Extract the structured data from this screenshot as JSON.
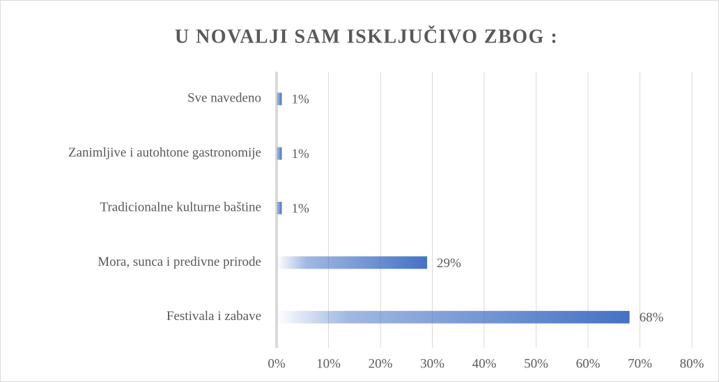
{
  "chart_data": {
    "type": "bar",
    "orientation": "horizontal",
    "title": "U NOVALJI SAM ISKLJUČIVO ZBOG :",
    "categories": [
      "Festivala i zabave",
      "Mora, sunca i predivne prirode",
      "Tradicionalne kulturne baštine",
      "Zanimljive i autohtone gastronomije",
      "Sve navedeno"
    ],
    "values": [
      68,
      29,
      1,
      1,
      1
    ],
    "value_labels": [
      "68%",
      "29%",
      "1%",
      "1%",
      "1%"
    ],
    "color": "#4472c4",
    "xlim": [
      0,
      80
    ],
    "xticks": [
      {
        "value": 0,
        "label": "0%"
      },
      {
        "value": 10,
        "label": "10%"
      },
      {
        "value": 20,
        "label": "20%"
      },
      {
        "value": 30,
        "label": "30%"
      },
      {
        "value": 40,
        "label": "40%"
      },
      {
        "value": 50,
        "label": "50%"
      },
      {
        "value": 60,
        "label": "60%"
      },
      {
        "value": 70,
        "label": "70%"
      },
      {
        "value": 80,
        "label": "80%"
      }
    ],
    "grid": true
  }
}
